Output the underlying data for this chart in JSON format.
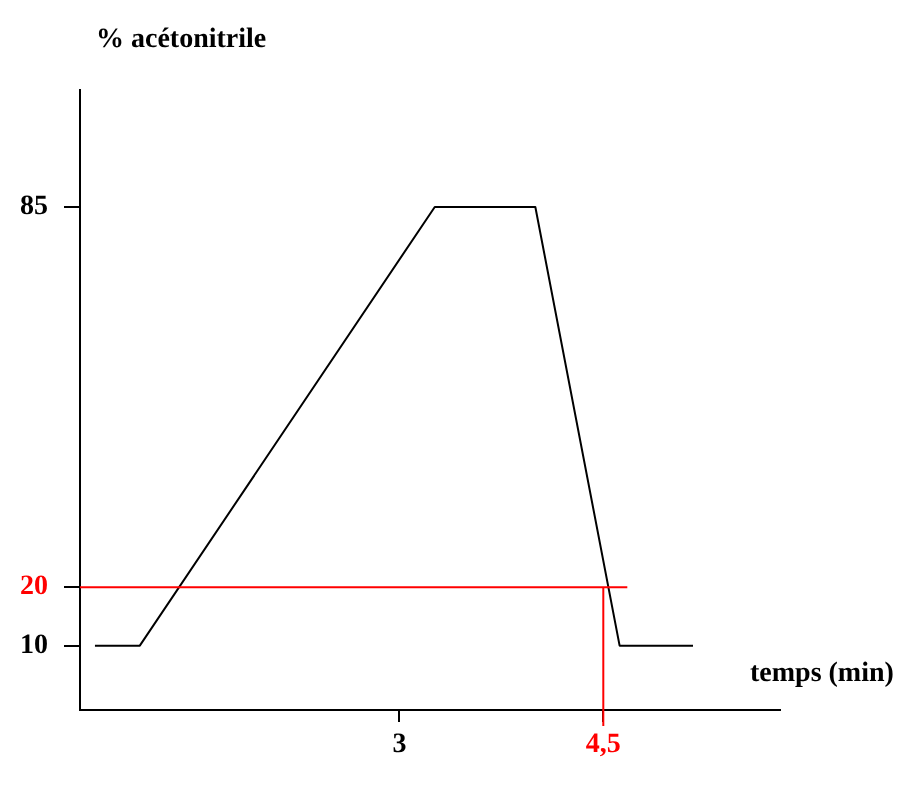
{
  "chart_data": {
    "type": "line",
    "xlabel": "temps (min)",
    "ylabel": "% acétonitrile",
    "x": [
      0.76,
      1.09,
      3.26,
      4.0,
      4.62,
      5.16
    ],
    "series": [
      {
        "color": "#000000",
        "values": [
          10,
          10,
          85,
          85,
          10,
          10
        ]
      }
    ],
    "xlim": [
      0.65,
      5.8
    ],
    "ylim": [
      -1,
      105
    ],
    "xticks": [
      3,
      {
        "value": 4.5,
        "label": "4,5"
      }
    ],
    "yticks": [
      10,
      20,
      85
    ],
    "ref_lines": [
      {
        "axis": "y",
        "value": 20,
        "color": "#ff0000"
      },
      {
        "axis": "x",
        "value": 4.5,
        "color": "#ff0000"
      }
    ],
    "grid": false,
    "legend": false,
    "marker": "none",
    "line_style": "solid"
  }
}
